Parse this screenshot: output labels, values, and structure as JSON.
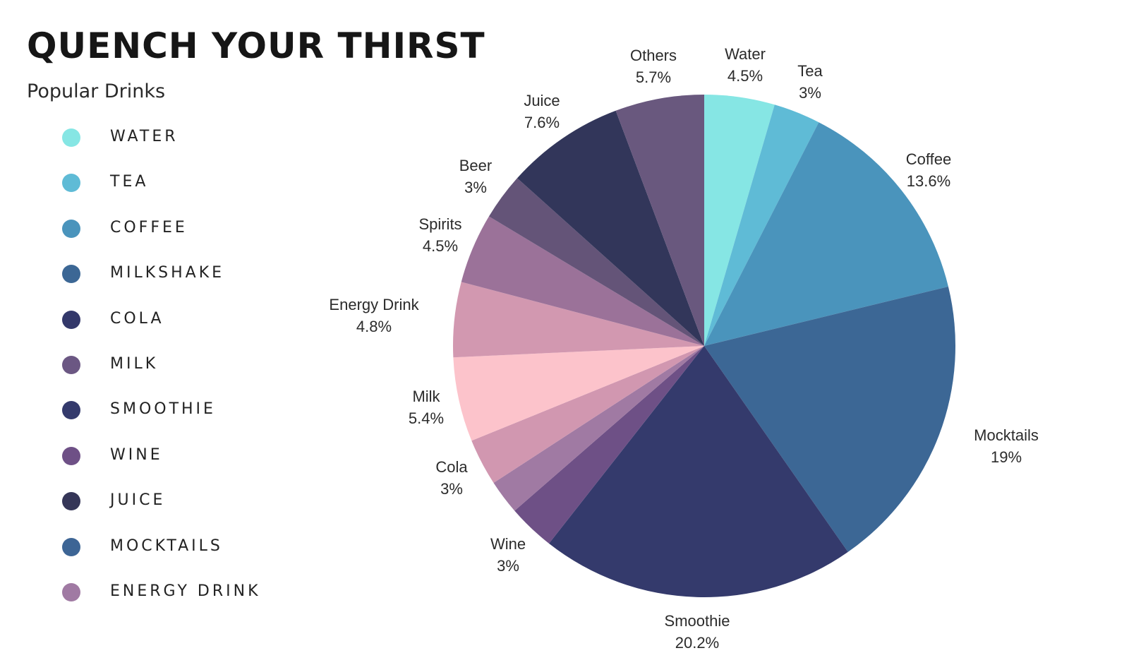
{
  "title": "QUENCH YOUR THIRST",
  "subtitle": "Popular Drinks",
  "legend": [
    {
      "label": "WATER",
      "color": "#86E6E4"
    },
    {
      "label": "TEA",
      "color": "#5FBBD6"
    },
    {
      "label": "COFFEE",
      "color": "#4A94BC"
    },
    {
      "label": "MILKSHAKE",
      "color": "#3C6795"
    },
    {
      "label": "COLA",
      "color": "#33386A"
    },
    {
      "label": "MILK",
      "color": "#6B5783"
    },
    {
      "label": "SMOOTHIE",
      "color": "#343A6C"
    },
    {
      "label": "WINE",
      "color": "#6E5086"
    },
    {
      "label": "JUICE",
      "color": "#353658"
    },
    {
      "label": "MOCKTAILS",
      "color": "#3D6595"
    },
    {
      "label": "ENERGY DRINK",
      "color": "#A07AA3"
    }
  ],
  "chart_data": {
    "type": "pie",
    "start_angle_deg": 0,
    "direction": "clockwise",
    "slices": [
      {
        "name": "Water",
        "value": 4.5,
        "label": "4.5%",
        "color": "#86E6E4"
      },
      {
        "name": "Tea",
        "value": 3,
        "label": "3%",
        "color": "#5FBBD6"
      },
      {
        "name": "Coffee",
        "value": 13.6,
        "label": "13.6%",
        "color": "#4A94BC"
      },
      {
        "name": "Mocktails",
        "value": 19,
        "label": "19%",
        "color": "#3C6795"
      },
      {
        "name": "Smoothie",
        "value": 20.2,
        "label": "20.2%",
        "color": "#343A6C"
      },
      {
        "name": "Wine",
        "value": 3,
        "label": "3%",
        "color": "#6E5086"
      },
      {
        "name": "",
        "value": 2.2,
        "label": "",
        "color": "#A07AA3"
      },
      {
        "name": "Cola",
        "value": 3,
        "label": "3%",
        "color": "#D197B0"
      },
      {
        "name": "Milk",
        "value": 5.4,
        "label": "5.4%",
        "color": "#FCC3CB"
      },
      {
        "name": "Energy Drink",
        "value": 4.8,
        "label": "4.8%",
        "color": "#D298B0"
      },
      {
        "name": "Spirits",
        "value": 4.5,
        "label": "4.5%",
        "color": "#9B7299"
      },
      {
        "name": "Beer",
        "value": 3,
        "label": "3%",
        "color": "#645478"
      },
      {
        "name": "Juice",
        "value": 7.6,
        "label": "7.6%",
        "color": "#32365A"
      },
      {
        "name": "Others",
        "value": 5.7,
        "label": "5.7%",
        "color": "#69587E"
      }
    ]
  }
}
